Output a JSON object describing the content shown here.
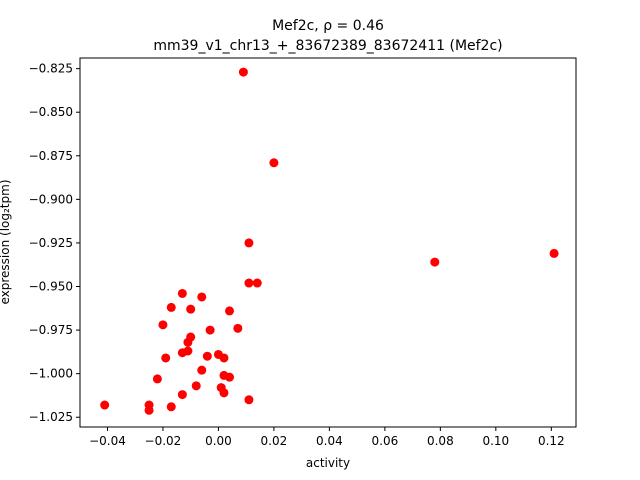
{
  "chart_data": {
    "type": "scatter",
    "title_line1": "Mef2c, ρ = 0.46",
    "title_line2": "mm39_v1_chr13_+_83672389_83672411 (Mef2c)",
    "xlabel": "activity",
    "ylabel": "expression (log₂tpm)",
    "xlim": [
      -0.0499,
      0.1289
    ],
    "ylim": [
      -1.0306,
      -0.8189
    ],
    "xticks": [
      {
        "value": -0.04,
        "label": "−0.04"
      },
      {
        "value": -0.02,
        "label": "−0.02"
      },
      {
        "value": 0.0,
        "label": "0.00"
      },
      {
        "value": 0.02,
        "label": "0.02"
      },
      {
        "value": 0.04,
        "label": "0.04"
      },
      {
        "value": 0.06,
        "label": "0.06"
      },
      {
        "value": 0.08,
        "label": "0.08"
      },
      {
        "value": 0.1,
        "label": "0.10"
      },
      {
        "value": 0.12,
        "label": "0.12"
      }
    ],
    "yticks": [
      {
        "value": -0.825,
        "label": "−0.825"
      },
      {
        "value": -0.85,
        "label": "−0.850"
      },
      {
        "value": -0.875,
        "label": "−0.875"
      },
      {
        "value": -0.9,
        "label": "−0.900"
      },
      {
        "value": -0.925,
        "label": "−0.925"
      },
      {
        "value": -0.95,
        "label": "−0.950"
      },
      {
        "value": -0.975,
        "label": "−0.975"
      },
      {
        "value": -1.0,
        "label": "−1.000"
      },
      {
        "value": -1.025,
        "label": "−1.025"
      }
    ],
    "grid": false,
    "marker_color": "#ff0000",
    "points": [
      {
        "x": 0.009,
        "y": -0.827
      },
      {
        "x": 0.02,
        "y": -0.879
      },
      {
        "x": 0.011,
        "y": -0.925
      },
      {
        "x": 0.078,
        "y": -0.936
      },
      {
        "x": 0.121,
        "y": -0.931
      },
      {
        "x": 0.011,
        "y": -0.948
      },
      {
        "x": 0.014,
        "y": -0.948
      },
      {
        "x": -0.013,
        "y": -0.954
      },
      {
        "x": -0.006,
        "y": -0.956
      },
      {
        "x": -0.017,
        "y": -0.962
      },
      {
        "x": -0.01,
        "y": -0.963
      },
      {
        "x": 0.004,
        "y": -0.964
      },
      {
        "x": -0.02,
        "y": -0.972
      },
      {
        "x": -0.003,
        "y": -0.975
      },
      {
        "x": 0.007,
        "y": -0.974
      },
      {
        "x": -0.01,
        "y": -0.979
      },
      {
        "x": -0.011,
        "y": -0.982
      },
      {
        "x": -0.011,
        "y": -0.987
      },
      {
        "x": -0.013,
        "y": -0.988
      },
      {
        "x": -0.019,
        "y": -0.991
      },
      {
        "x": -0.004,
        "y": -0.99
      },
      {
        "x": 0.0,
        "y": -0.989
      },
      {
        "x": 0.002,
        "y": -0.991
      },
      {
        "x": -0.006,
        "y": -0.998
      },
      {
        "x": 0.002,
        "y": -1.001
      },
      {
        "x": 0.004,
        "y": -1.002
      },
      {
        "x": -0.022,
        "y": -1.003
      },
      {
        "x": -0.008,
        "y": -1.007
      },
      {
        "x": 0.001,
        "y": -1.008
      },
      {
        "x": 0.002,
        "y": -1.011
      },
      {
        "x": -0.013,
        "y": -1.012
      },
      {
        "x": 0.011,
        "y": -1.015
      },
      {
        "x": -0.041,
        "y": -1.018
      },
      {
        "x": -0.025,
        "y": -1.018
      },
      {
        "x": -0.017,
        "y": -1.019
      },
      {
        "x": -0.025,
        "y": -1.021
      }
    ]
  }
}
